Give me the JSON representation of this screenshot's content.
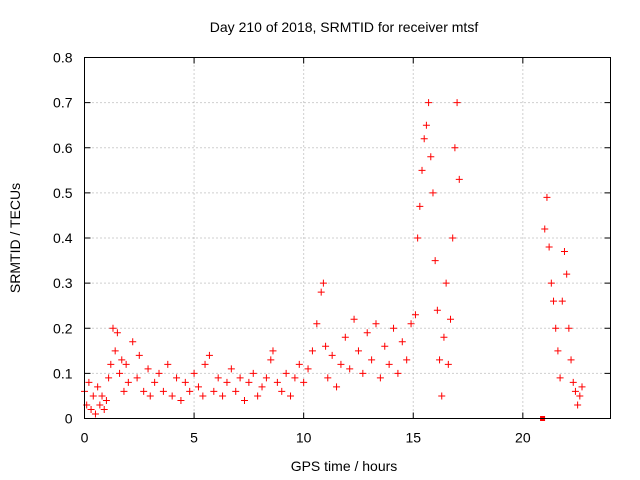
{
  "chart_data": {
    "type": "scatter",
    "title": "Day 210 of 2018, SRMTID for receiver mtsf",
    "xlabel": "GPS time / hours",
    "ylabel": "SRMTID / TECUs",
    "xlim": [
      0,
      24
    ],
    "ylim": [
      0,
      0.8
    ],
    "xticks": [
      0,
      5,
      10,
      15,
      20
    ],
    "xtick_labels": [
      "0",
      "5",
      "10",
      "15",
      "20"
    ],
    "yticks": [
      0,
      0.1,
      0.2,
      0.3,
      0.4,
      0.5,
      0.6,
      0.7,
      0.8
    ],
    "ytick_labels": [
      "0",
      "0.1",
      "0.2",
      "0.3",
      "0.4",
      "0.5",
      "0.6",
      "0.7",
      "0.8"
    ],
    "grid": true,
    "marker": "+",
    "color": "#ff0000",
    "series": [
      {
        "name": "SRMTID",
        "x": [
          0.0,
          0.1,
          0.2,
          0.3,
          0.4,
          0.5,
          0.6,
          0.7,
          0.8,
          0.9,
          1.0,
          1.1,
          1.2,
          1.3,
          1.4,
          1.5,
          1.6,
          1.7,
          1.8,
          1.9,
          2.0,
          2.2,
          2.4,
          2.5,
          2.7,
          2.9,
          3.0,
          3.2,
          3.4,
          3.6,
          3.8,
          4.0,
          4.2,
          4.4,
          4.6,
          4.8,
          5.0,
          5.2,
          5.4,
          5.5,
          5.7,
          5.9,
          6.1,
          6.3,
          6.5,
          6.7,
          6.9,
          7.1,
          7.3,
          7.5,
          7.7,
          7.9,
          8.1,
          8.3,
          8.5,
          8.6,
          8.8,
          9.0,
          9.2,
          9.4,
          9.6,
          9.8,
          10.0,
          10.2,
          10.4,
          10.6,
          10.8,
          10.9,
          11.0,
          11.1,
          11.3,
          11.5,
          11.7,
          11.9,
          12.1,
          12.3,
          12.5,
          12.7,
          12.9,
          13.1,
          13.3,
          13.5,
          13.7,
          13.9,
          14.1,
          14.3,
          14.5,
          14.7,
          14.9,
          15.1,
          15.2,
          15.3,
          15.4,
          15.5,
          15.6,
          15.7,
          15.8,
          15.9,
          16.0,
          16.1,
          16.2,
          16.3,
          16.4,
          16.5,
          16.6,
          16.7,
          16.8,
          16.9,
          17.0,
          17.1,
          21.0,
          21.1,
          21.2,
          21.3,
          21.4,
          21.5,
          21.6,
          21.7,
          21.8,
          21.9,
          22.0,
          22.1,
          22.2,
          22.3,
          22.4,
          22.5,
          22.6,
          22.7
        ],
        "y": [
          0.06,
          0.03,
          0.08,
          0.02,
          0.05,
          0.01,
          0.07,
          0.03,
          0.05,
          0.02,
          0.04,
          0.09,
          0.12,
          0.2,
          0.15,
          0.19,
          0.1,
          0.13,
          0.06,
          0.12,
          0.08,
          0.17,
          0.09,
          0.14,
          0.06,
          0.11,
          0.05,
          0.08,
          0.1,
          0.06,
          0.12,
          0.05,
          0.09,
          0.04,
          0.08,
          0.06,
          0.1,
          0.07,
          0.05,
          0.12,
          0.14,
          0.06,
          0.09,
          0.05,
          0.08,
          0.11,
          0.06,
          0.09,
          0.04,
          0.08,
          0.1,
          0.05,
          0.07,
          0.09,
          0.13,
          0.15,
          0.08,
          0.06,
          0.1,
          0.05,
          0.09,
          0.12,
          0.08,
          0.11,
          0.15,
          0.21,
          0.28,
          0.3,
          0.16,
          0.09,
          0.14,
          0.07,
          0.12,
          0.18,
          0.11,
          0.22,
          0.15,
          0.1,
          0.19,
          0.13,
          0.21,
          0.09,
          0.16,
          0.12,
          0.2,
          0.1,
          0.17,
          0.13,
          0.21,
          0.23,
          0.4,
          0.47,
          0.55,
          0.62,
          0.65,
          0.7,
          0.58,
          0.5,
          0.35,
          0.24,
          0.13,
          0.05,
          0.18,
          0.3,
          0.12,
          0.22,
          0.4,
          0.6,
          0.7,
          0.53,
          0.42,
          0.49,
          0.38,
          0.3,
          0.26,
          0.2,
          0.15,
          0.09,
          0.26,
          0.37,
          0.32,
          0.2,
          0.13,
          0.08,
          0.06,
          0.03,
          0.05,
          0.07
        ]
      }
    ],
    "zero_marker": {
      "x": 20.9,
      "y": 0.0
    }
  }
}
